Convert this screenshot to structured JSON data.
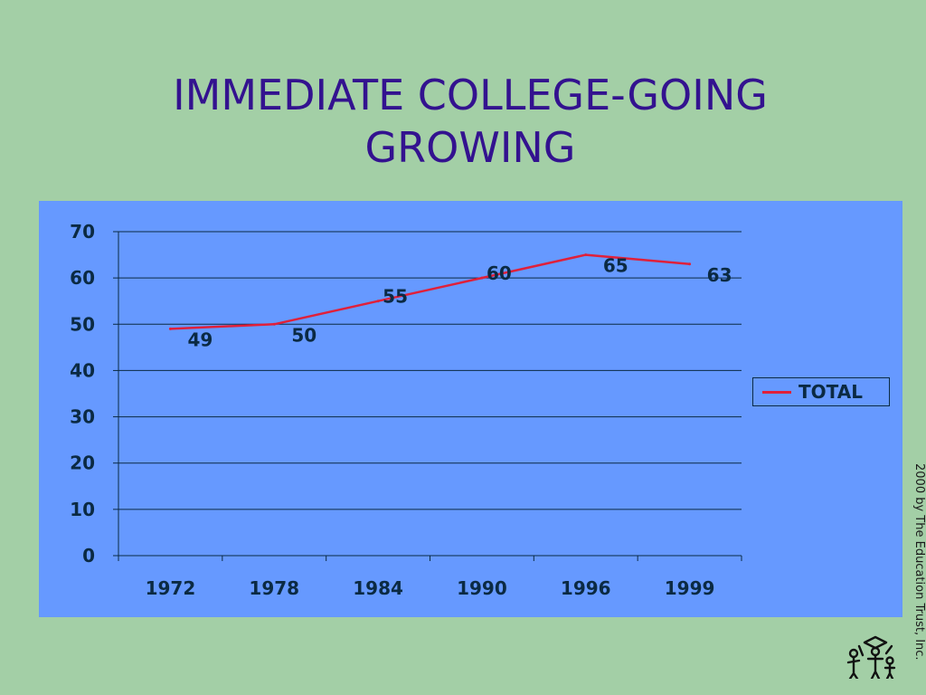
{
  "slide": {
    "title_line1": "IMMEDIATE COLLEGE-GOING",
    "title_line2": "GROWING",
    "credit": "2000 by The Education Trust, Inc.",
    "logo_icon": "education-trust-logo-icon"
  },
  "colors": {
    "background": "#a3cfa6",
    "title": "#33128f",
    "plot_area": "#6699ff",
    "series_line": "#e0203a",
    "text": "#0b2a43"
  },
  "chart_data": {
    "type": "line",
    "title": "",
    "xlabel": "",
    "ylabel": "",
    "categories": [
      "1972",
      "1978",
      "1984",
      "1990",
      "1996",
      "1999"
    ],
    "series": [
      {
        "name": "TOTAL",
        "values": [
          49,
          50,
          55,
          60,
          65,
          63
        ]
      }
    ],
    "data_labels": [
      "49",
      "50",
      "55",
      "60",
      "65",
      "63"
    ],
    "y_ticks": [
      "0",
      "10",
      "20",
      "30",
      "40",
      "50",
      "60",
      "70"
    ],
    "ylim": [
      0,
      70
    ],
    "grid": true,
    "legend_position": "right"
  }
}
